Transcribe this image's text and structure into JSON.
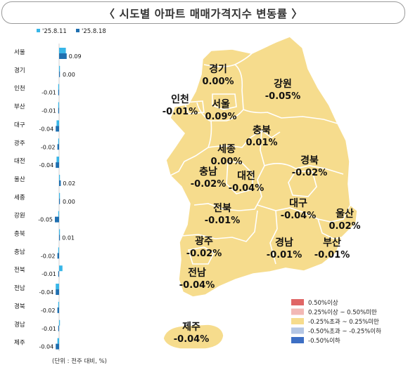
{
  "title": "〈 시도별 아파트 매매가격지수 변동률 〉",
  "unit_note": "(단위 : 전주 대비, %)",
  "colors": {
    "series_prev": "#38b6e8",
    "series_curr": "#1f6fb0",
    "map_fill": "#f6dc8d",
    "map_stroke": "#ffffff"
  },
  "chart_data": [
    {
      "type": "bar",
      "orientation": "horizontal",
      "categories": [
        "서울",
        "경기",
        "인천",
        "부산",
        "대구",
        "광주",
        "대전",
        "울산",
        "세종",
        "강원",
        "충북",
        "충남",
        "전북",
        "전남",
        "경북",
        "경남",
        "제주"
      ],
      "series": [
        {
          "name": "'25.8.11",
          "values": [
            0.08,
            0.0,
            -0.01,
            -0.01,
            -0.03,
            -0.01,
            -0.03,
            0.01,
            0.0,
            -0.01,
            0.01,
            -0.01,
            0.04,
            -0.04,
            -0.01,
            0.0,
            -0.02
          ]
        },
        {
          "name": "'25.8.18",
          "values": [
            0.09,
            0.0,
            -0.01,
            -0.01,
            -0.04,
            -0.02,
            -0.04,
            0.02,
            0.0,
            -0.05,
            0.01,
            -0.02,
            -0.01,
            -0.04,
            -0.02,
            -0.01,
            -0.04
          ]
        }
      ],
      "value_labels": [
        "0.09",
        "0.00",
        "-0.01",
        "-0.01",
        "-0.04",
        "-0.02",
        "-0.04",
        "0.02",
        "0.00",
        "-0.05",
        "0.01",
        "-0.02",
        "-0.01",
        "-0.04",
        "-0.02",
        "-0.01",
        "-0.04"
      ],
      "legend_position": "top"
    },
    {
      "type": "choropleth-map",
      "regions": [
        {
          "name": "경기",
          "value": "0.00%"
        },
        {
          "name": "강원",
          "value": "-0.05%"
        },
        {
          "name": "인천",
          "value": "-0.01%"
        },
        {
          "name": "서울",
          "value": "0.09%"
        },
        {
          "name": "충북",
          "value": "0.01%"
        },
        {
          "name": "세종",
          "value": "0.00%"
        },
        {
          "name": "경북",
          "value": "-0.02%"
        },
        {
          "name": "충남",
          "value": "-0.02%"
        },
        {
          "name": "대전",
          "value": "-0.04%"
        },
        {
          "name": "대구",
          "value": "-0.04%"
        },
        {
          "name": "울산",
          "value": "0.02%"
        },
        {
          "name": "전북",
          "value": "-0.01%"
        },
        {
          "name": "경남",
          "value": "-0.01%"
        },
        {
          "name": "부산",
          "value": "-0.01%"
        },
        {
          "name": "광주",
          "value": "-0.02%"
        },
        {
          "name": "전남",
          "value": "-0.04%"
        },
        {
          "name": "제주",
          "value": "-0.04%"
        }
      ],
      "legend": [
        {
          "label": "0.50%이상",
          "color": "#e06666"
        },
        {
          "label": "0.25%이상 ~ 0.50%미만",
          "color": "#f2b8b5"
        },
        {
          "label": "-0.25%초과 ~ 0.25%미만",
          "color": "#f6dc8d"
        },
        {
          "label": "-0.50%초과 ~ -0.25%이하",
          "color": "#b4c6e4"
        },
        {
          "label": "-0.50%이하",
          "color": "#3d6fc4"
        }
      ],
      "legend_position": "bottom-right"
    }
  ]
}
